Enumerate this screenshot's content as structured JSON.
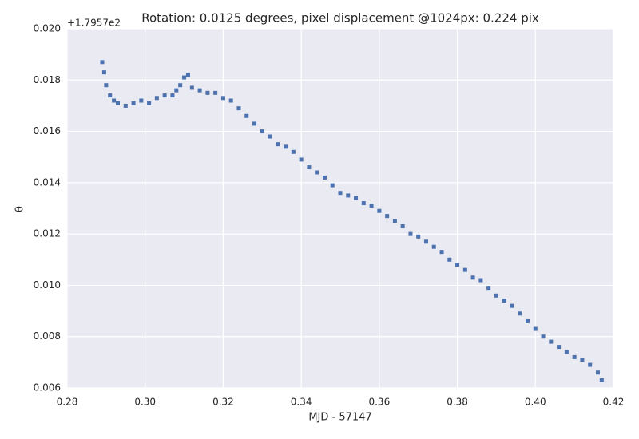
{
  "chart_data": {
    "type": "scatter",
    "title": "Rotation: 0.0125 degrees, pixel displacement @1024px: 0.224 pix",
    "x_label": "MJD - 57147",
    "y_label": "θ",
    "y_offset_label": "+1.7957e2",
    "color": "#4c72b0",
    "grid": true,
    "xlim": [
      0.28,
      0.42
    ],
    "ylim": [
      0.006,
      0.02
    ],
    "xticks": [
      0.28,
      {
        "value": 0.3,
        "label": "0.30"
      },
      0.32,
      0.34,
      0.36,
      0.38,
      {
        "value": 0.4,
        "label": "0.40"
      },
      0.42
    ],
    "yticks": [
      0.006,
      0.008,
      {
        "value": 0.01,
        "label": "0.010"
      },
      0.012,
      0.014,
      0.016,
      0.018,
      {
        "value": 0.02,
        "label": "0.020"
      }
    ],
    "x": [
      0.289,
      0.2895,
      0.29,
      0.291,
      0.292,
      0.293,
      0.295,
      0.297,
      0.299,
      0.301,
      0.303,
      0.305,
      0.307,
      0.308,
      0.309,
      0.31,
      0.311,
      0.312,
      0.314,
      0.316,
      0.318,
      0.32,
      0.322,
      0.324,
      0.326,
      0.328,
      0.33,
      0.332,
      0.334,
      0.336,
      0.338,
      0.34,
      0.342,
      0.344,
      0.346,
      0.348,
      0.35,
      0.352,
      0.354,
      0.356,
      0.358,
      0.36,
      0.362,
      0.364,
      0.366,
      0.368,
      0.37,
      0.372,
      0.374,
      0.376,
      0.378,
      0.38,
      0.382,
      0.384,
      0.386,
      0.388,
      0.39,
      0.392,
      0.394,
      0.396,
      0.398,
      0.4,
      0.402,
      0.404,
      0.406,
      0.408,
      0.41,
      0.412,
      0.414,
      0.416,
      0.417
    ],
    "values": [
      0.0187,
      0.0183,
      0.0178,
      0.0174,
      0.0172,
      0.0171,
      0.017,
      0.0171,
      0.0172,
      0.0171,
      0.0173,
      0.0174,
      0.0174,
      0.0176,
      0.0178,
      0.0181,
      0.0182,
      0.0177,
      0.0176,
      0.0175,
      0.0175,
      0.0173,
      0.0172,
      0.0169,
      0.0166,
      0.0163,
      0.016,
      0.0158,
      0.0155,
      0.0154,
      0.0152,
      0.0149,
      0.0146,
      0.0144,
      0.0142,
      0.0139,
      0.0136,
      0.0135,
      0.0134,
      0.0132,
      0.0131,
      0.0129,
      0.0127,
      0.0125,
      0.0123,
      0.012,
      0.0119,
      0.0117,
      0.0115,
      0.0113,
      0.011,
      0.0108,
      0.0106,
      0.0103,
      0.0102,
      0.0099,
      0.0096,
      0.0094,
      0.0092,
      0.0089,
      0.0086,
      0.0083,
      0.008,
      0.0078,
      0.0076,
      0.0074,
      0.0072,
      0.0071,
      0.0069,
      0.0066,
      0.0063
    ]
  }
}
